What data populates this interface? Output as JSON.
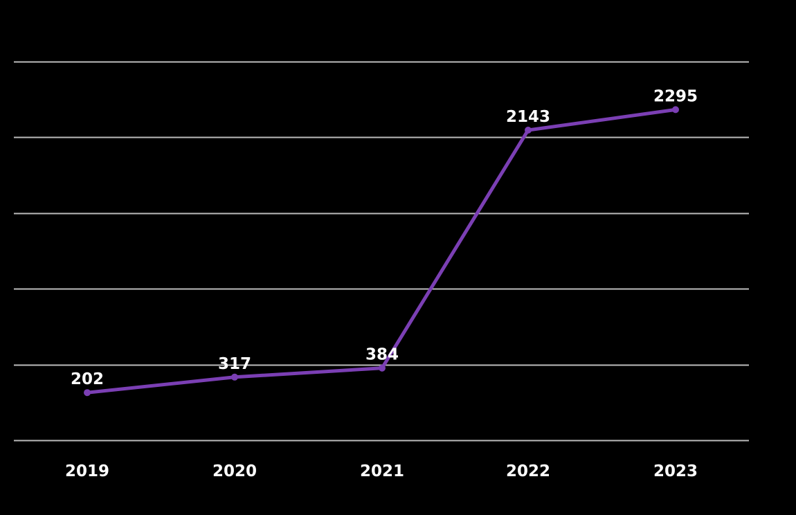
{
  "chart_data": {
    "type": "line",
    "categories": [
      "2019",
      "2020",
      "2021",
      "2022",
      "2023"
    ],
    "series": [
      {
        "values": [
          202,
          317,
          384,
          2143,
          2295
        ]
      }
    ],
    "ylim": [
      -150,
      2650
    ],
    "gridlines_y": [
      -150,
      410,
      970,
      1530,
      2090,
      2650
    ],
    "grid": true,
    "legend": "none",
    "colors": {
      "background": "#000000",
      "line": "#7b3fb4",
      "text": "#ffffff",
      "grid": "#bdbdbd"
    }
  }
}
